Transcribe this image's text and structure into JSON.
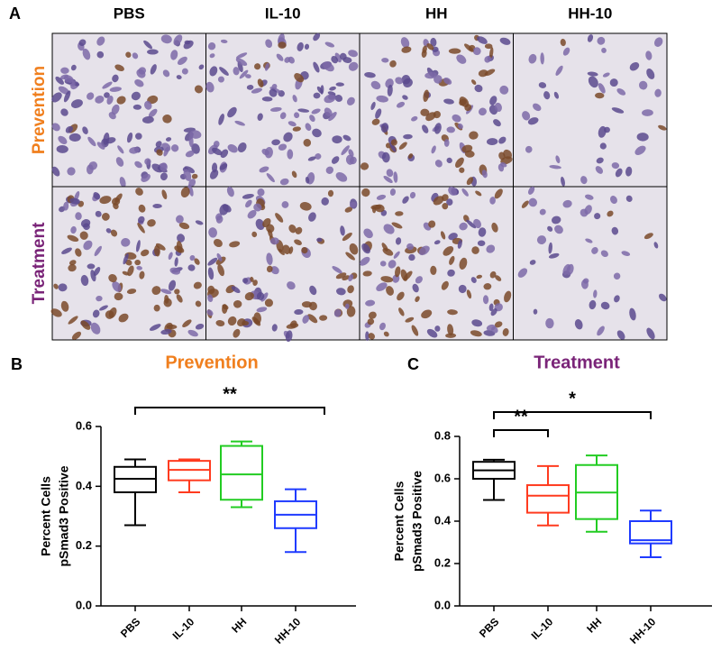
{
  "panel_a": {
    "label": "A",
    "columns": [
      "PBS",
      "IL-10",
      "HH",
      "HH-10"
    ],
    "rows": [
      {
        "label": "Prevention",
        "color": "#f07f1e"
      },
      {
        "label": "Treatment",
        "color": "#7a2478"
      }
    ]
  },
  "chart_data": [
    {
      "type": "box",
      "panel": "B",
      "title": "Prevention",
      "title_color": "#f07f1e",
      "ylabel": [
        "Percent Cells",
        "pSmad3 Positive"
      ],
      "categories": [
        "PBS",
        "IL-10",
        "HH",
        "HH-10"
      ],
      "colors": [
        "#000000",
        "#ff3b1f",
        "#22cc22",
        "#1f3bff"
      ],
      "boxes": [
        {
          "min": 0.27,
          "q1": 0.38,
          "median": 0.425,
          "q3": 0.465,
          "max": 0.49
        },
        {
          "min": 0.38,
          "q1": 0.42,
          "median": 0.455,
          "q3": 0.485,
          "max": 0.49
        },
        {
          "min": 0.33,
          "q1": 0.355,
          "median": 0.44,
          "q3": 0.535,
          "max": 0.55
        },
        {
          "min": 0.18,
          "q1": 0.26,
          "median": 0.305,
          "q3": 0.35,
          "max": 0.39
        }
      ],
      "ylim": [
        0,
        0.6
      ],
      "yticks": [
        {
          "value": 0,
          "label": "0.0"
        },
        0.2,
        0.4,
        0.6
      ],
      "annotations": [
        {
          "text": "**",
          "categories": [
            "PBS",
            "HH-10"
          ]
        }
      ]
    },
    {
      "type": "box",
      "panel": "C",
      "title": "Treatment",
      "title_color": "#7a2478",
      "ylabel": [
        "Percent Cells",
        "pSmad3 Positive"
      ],
      "categories": [
        "PBS",
        "IL-10",
        "HH",
        "HH-10"
      ],
      "colors": [
        "#000000",
        "#ff3b1f",
        "#22cc22",
        "#1f3bff"
      ],
      "boxes": [
        {
          "min": 0.5,
          "q1": 0.6,
          "median": 0.64,
          "q3": 0.68,
          "max": 0.69
        },
        {
          "min": 0.38,
          "q1": 0.44,
          "median": 0.52,
          "q3": 0.57,
          "max": 0.66
        },
        {
          "min": 0.35,
          "q1": 0.41,
          "median": 0.535,
          "q3": 0.665,
          "max": 0.71
        },
        {
          "min": 0.23,
          "q1": 0.295,
          "median": 0.31,
          "q3": 0.4,
          "max": 0.45
        }
      ],
      "ylim": [
        0,
        0.8
      ],
      "yticks": [
        {
          "value": 0,
          "label": "0.0"
        },
        0.2,
        0.4,
        0.6,
        0.8
      ],
      "annotations": [
        {
          "text": "*",
          "categories": [
            "PBS",
            "HH-10"
          ]
        },
        {
          "text": "**",
          "categories": [
            "PBS",
            "IL-10"
          ]
        }
      ]
    }
  ]
}
